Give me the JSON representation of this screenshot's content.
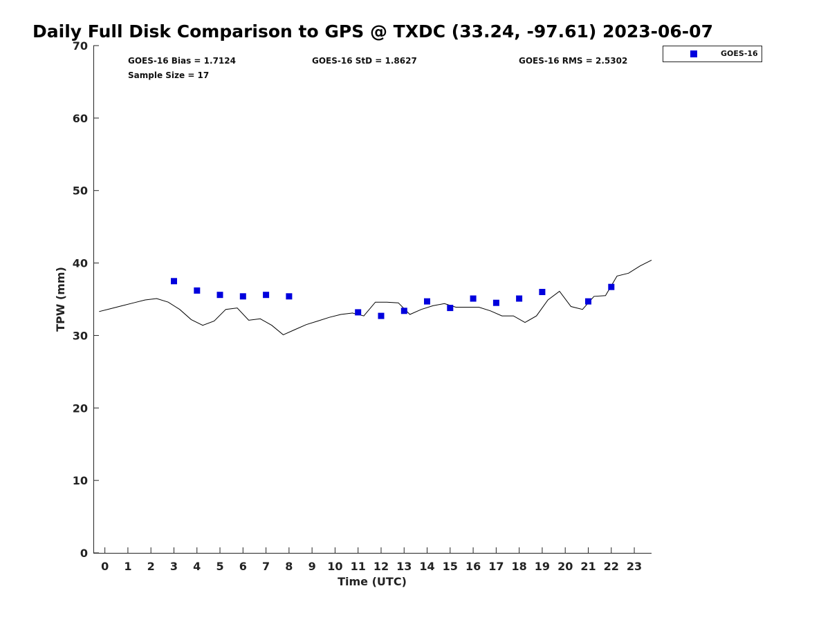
{
  "chart_data": {
    "type": "scatter",
    "title": "Daily Full Disk Comparison to GPS @ TXDC (33.24, -97.61) 2023-06-07",
    "xlabel": "Time (UTC)",
    "ylabel": "TPW (mm)",
    "xlim": [
      -0.5,
      23.75
    ],
    "ylim": [
      0,
      70
    ],
    "xticks": [
      0,
      1,
      2,
      3,
      4,
      5,
      6,
      7,
      8,
      9,
      10,
      11,
      12,
      13,
      14,
      15,
      16,
      17,
      18,
      19,
      20,
      21,
      22,
      23
    ],
    "yticks": [
      0,
      10,
      20,
      30,
      40,
      50,
      60,
      70
    ],
    "grid": false,
    "legend_position": "top-right",
    "stats": {
      "bias": "GOES-16 Bias = 1.7124",
      "std": "GOES-16 StD = 1.8627",
      "rms": "GOES-16 RMS = 2.5302",
      "sample": "Sample Size = 17"
    },
    "series": [
      {
        "name": "GOES-16",
        "kind": "scatter",
        "color": "#0000dd",
        "x": [
          3,
          4,
          5,
          6,
          7,
          8,
          11,
          12,
          13,
          14,
          15,
          16,
          17,
          18,
          19,
          21,
          22
        ],
        "y": [
          37.5,
          36.2,
          35.6,
          35.4,
          35.6,
          35.4,
          33.2,
          32.7,
          33.4,
          34.7,
          33.8,
          35.1,
          34.5,
          35.1,
          36.0,
          34.7,
          36.7
        ]
      },
      {
        "kind": "line",
        "color": "#000000",
        "x": [
          -0.25,
          0.25,
          0.75,
          1.25,
          1.75,
          2.25,
          2.75,
          3.25,
          3.75,
          4.25,
          4.75,
          5.25,
          5.75,
          6.25,
          6.75,
          7.25,
          7.75,
          8.25,
          8.75,
          9.25,
          9.75,
          10.25,
          10.75,
          11.25,
          11.75,
          12.25,
          12.75,
          13.25,
          13.75,
          14.25,
          14.75,
          15.25,
          15.75,
          16.25,
          16.75,
          17.25,
          17.75,
          18.25,
          18.75,
          19.25,
          19.75,
          20.25,
          20.75,
          21.25,
          21.75,
          22.25,
          22.75,
          23.25,
          23.75
        ],
        "y": [
          33.3,
          33.7,
          34.1,
          34.5,
          34.9,
          35.1,
          34.6,
          33.6,
          32.2,
          31.4,
          32.0,
          33.6,
          33.8,
          32.1,
          32.3,
          31.4,
          30.1,
          30.8,
          31.5,
          32.0,
          32.5,
          32.9,
          33.1,
          32.7,
          34.6,
          34.6,
          34.5,
          32.9,
          33.6,
          34.1,
          34.4,
          33.9,
          33.9,
          33.9,
          33.4,
          32.7,
          32.7,
          31.8,
          32.7,
          34.9,
          36.1,
          34.0,
          33.6,
          35.4,
          35.5,
          38.2,
          38.6,
          39.6,
          40.4
        ]
      }
    ]
  }
}
